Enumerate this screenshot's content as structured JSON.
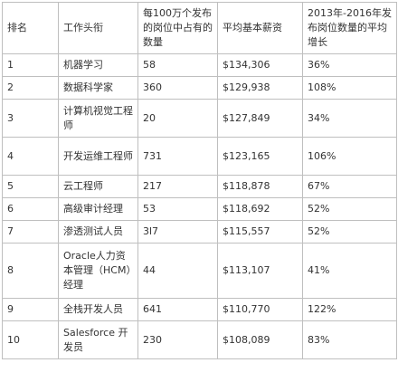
{
  "table": {
    "headers": [
      "排名",
      "工作头衔",
      "每100万个发布的岗位中占有的数量",
      "平均基本薪资",
      "2013年-2016年发布岗位数量的平均增长"
    ],
    "rows": [
      {
        "rank": "1",
        "title": "机器学习",
        "count": "58",
        "salary": "$134,306",
        "growth": "36%"
      },
      {
        "rank": "2",
        "title": "数据科学家",
        "count": "360",
        "salary": "$129,938",
        "growth": "108%"
      },
      {
        "rank": "3",
        "title": "计算机视觉工程师",
        "count": "20",
        "salary": "$127,849",
        "growth": "34%"
      },
      {
        "rank": "4",
        "title": "开发运维工程师",
        "count": "731",
        "salary": "$123,165",
        "growth": "106%"
      },
      {
        "rank": "5",
        "title": "云工程师",
        "count": "217",
        "salary": "$118,878",
        "growth": "67%"
      },
      {
        "rank": "6",
        "title": "高级审计经理",
        "count": "53",
        "salary": "$118,692",
        "growth": "52%"
      },
      {
        "rank": "7",
        "title": "渗透测试人员",
        "count": "3l7",
        "salary": "$115,557",
        "growth": "52%"
      },
      {
        "rank": "8",
        "title": "Oracle人力资本管理（HCM）经理",
        "count": "44",
        "salary": "$113,107",
        "growth": "41%"
      },
      {
        "rank": "9",
        "title": "全栈开发人员",
        "count": "641",
        "salary": "$110,770",
        "growth": "122%"
      },
      {
        "rank": "10",
        "title": "Salesforce 开发员",
        "count": "230",
        "salary": "$108,089",
        "growth": "83%"
      }
    ]
  }
}
